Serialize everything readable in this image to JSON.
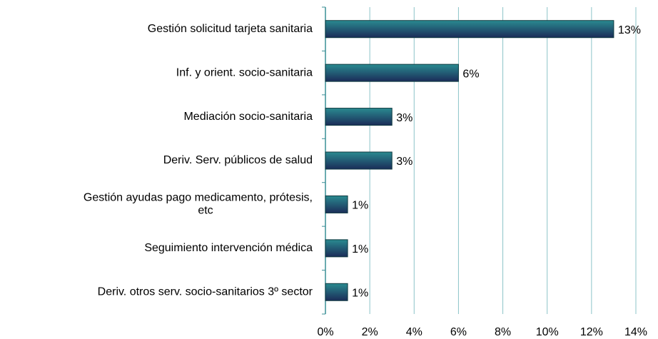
{
  "chart_data": {
    "type": "bar",
    "orientation": "horizontal",
    "categories": [
      "Gestión solicitud tarjeta sanitaria",
      "Inf. y orient. socio-sanitaria",
      "Mediación socio-sanitaria",
      "Deriv. Serv. públicos de salud",
      "Gestión ayudas pago medicamento, prótesis,\netc",
      "Seguimiento intervención médica",
      "Deriv. otros serv. socio-sanitarios 3º sector"
    ],
    "values": [
      13,
      6,
      3,
      3,
      1,
      1,
      1
    ],
    "value_labels": [
      "13%",
      "6%",
      "3%",
      "3%",
      "1%",
      "1%",
      "1%"
    ],
    "color": "#2a8a90",
    "xlim": [
      0,
      14
    ],
    "xticks": [
      {
        "value": 0,
        "label": "0%"
      },
      {
        "value": 2,
        "label": "2%"
      },
      {
        "value": 4,
        "label": "4%"
      },
      {
        "value": 6,
        "label": "6%"
      },
      {
        "value": 8,
        "label": "8%"
      },
      {
        "value": 10,
        "label": "10%"
      },
      {
        "value": 12,
        "label": "12%"
      },
      {
        "value": 14,
        "label": "14%"
      }
    ],
    "grid": true
  }
}
